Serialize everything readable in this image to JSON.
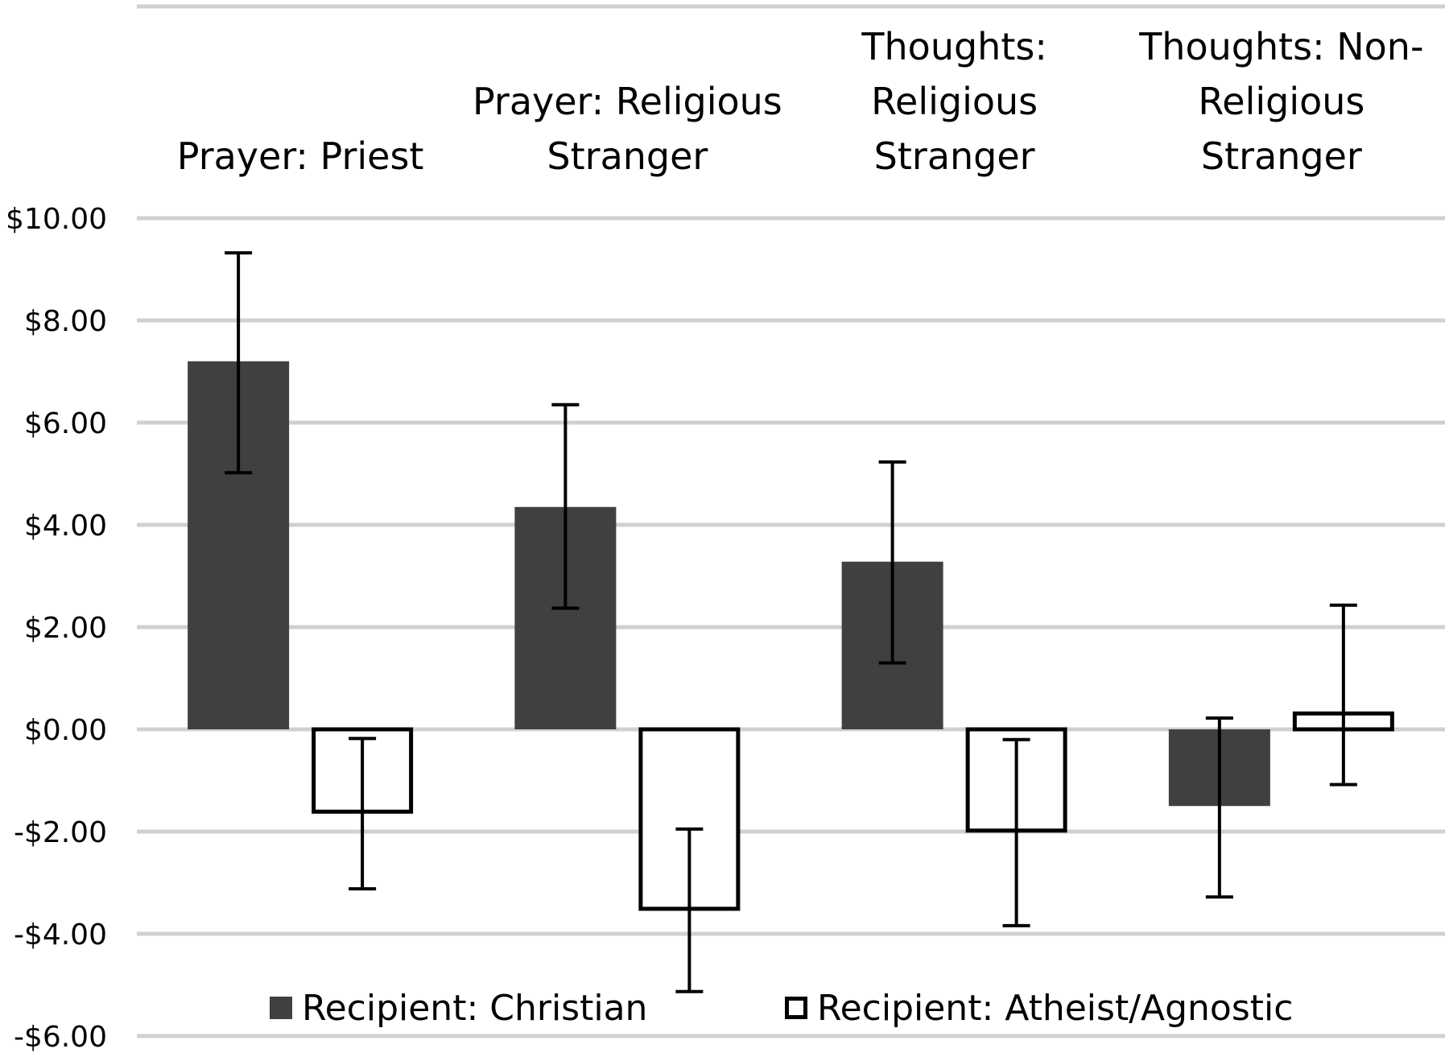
{
  "chart_data": {
    "type": "bar",
    "title": "",
    "xlabel": "",
    "ylabel": "",
    "categories": [
      [
        "Prayer: Priest"
      ],
      [
        "Prayer: Religious",
        "Stranger"
      ],
      [
        "Thoughts:",
        "Religious",
        "Stranger"
      ],
      [
        "Thoughts: Non-",
        "Religious",
        "Stranger"
      ]
    ],
    "series": [
      {
        "name": "Recipient: Christian",
        "fill": "#404040",
        "outline": "none",
        "values": [
          7.2,
          4.35,
          3.28,
          -1.5
        ],
        "error_low": [
          5.02,
          2.37,
          1.3,
          -3.28
        ],
        "error_high": [
          9.32,
          6.35,
          5.23,
          0.22
        ]
      },
      {
        "name": "Recipient: Atheist/Agnostic",
        "fill": "#ffffff",
        "outline": "#000000",
        "values": [
          -1.65,
          -3.55,
          -2.02,
          0.35
        ],
        "error_low": [
          -3.12,
          -5.13,
          -3.84,
          -1.08
        ],
        "error_high": [
          -0.18,
          -1.95,
          -0.2,
          2.43
        ]
      }
    ],
    "ylim": [
      -6,
      10
    ],
    "yticks": [
      10,
      8,
      6,
      4,
      2,
      0,
      -2,
      -4,
      -6
    ],
    "ytick_labels": [
      "$10.00",
      "$8.00",
      "$6.00",
      "$4.00",
      "$2.00",
      "$0.00",
      "-$2.00",
      "-$4.00",
      "-$6.00"
    ],
    "grid": true,
    "grid_color": "#d0d0d0",
    "legend_position": "bottom"
  }
}
